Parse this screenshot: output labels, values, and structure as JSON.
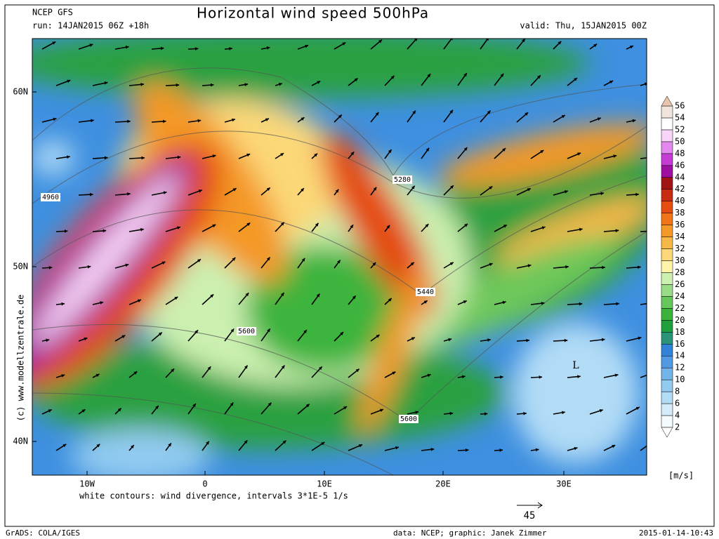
{
  "header": {
    "model": "NCEP GFS",
    "run": "run: 14JAN2015 06Z +18h",
    "title": "Horizontal wind speed 500hPa",
    "valid": "valid: Thu, 15JAN2015 00Z"
  },
  "map": {
    "lat_labels": [
      "60N",
      "50N",
      "40N"
    ],
    "lon_labels": [
      "10W",
      "0",
      "10E",
      "20E",
      "30E"
    ],
    "contour_labels": [
      "4960",
      "5280",
      "5440",
      "5600",
      "5600"
    ],
    "low_label": "L",
    "note": "white contours: wind divergence, intervals 3*1E-5 1/s",
    "credit": "(c) www.modellzentrale.de"
  },
  "vector_legend": {
    "value": 45
  },
  "colorbar": {
    "unit": "[m/s]",
    "levels": [
      2,
      4,
      6,
      8,
      10,
      12,
      14,
      16,
      18,
      20,
      22,
      24,
      26,
      28,
      30,
      32,
      34,
      36,
      38,
      40,
      42,
      44,
      46,
      48,
      50,
      52,
      54,
      56
    ],
    "colors": [
      "#f4fbff",
      "#d4ecfa",
      "#b2dcf6",
      "#92caf0",
      "#72b4ea",
      "#519ae2",
      "#3282d8",
      "#2a9478",
      "#1fa03c",
      "#3cb43c",
      "#66c85a",
      "#98dc88",
      "#ccf0b0",
      "#fff4a8",
      "#fcd878",
      "#f8b848",
      "#f49828",
      "#f07418",
      "#e44c10",
      "#c82c10",
      "#a01414",
      "#a010a0",
      "#c43cd4",
      "#e488f0",
      "#f8d4f8",
      "#ffffff",
      "#f0e4dc"
    ],
    "over_color": "#e8c4ac",
    "under_color": "#ffffff"
  },
  "footer": {
    "left": "GrADS: COLA/IGES",
    "center": "data: NCEP; graphic: Janek Zimmer",
    "right": "2015-01-14-10:43"
  }
}
